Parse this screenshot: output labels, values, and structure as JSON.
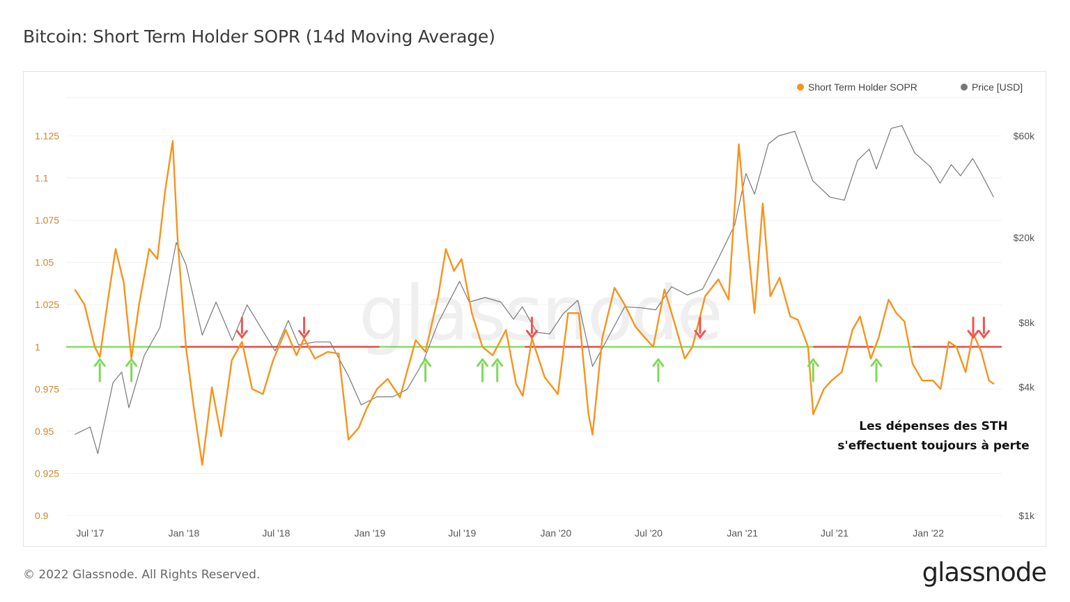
{
  "header": {
    "title": "Bitcoin: Short Term Holder SOPR (14d Moving Average)"
  },
  "legend": {
    "sopr": {
      "label": "Short Term Holder SOPR",
      "color": "#f7931a"
    },
    "price": {
      "label": "Price [USD]",
      "color": "#777777"
    }
  },
  "annotation": {
    "line1": "Les dépenses des STH",
    "line2": "s'effectuent toujours à perte"
  },
  "watermark": "glassnode",
  "footer": {
    "copyright": "© 2022 Glassnode. All Rights Reserved.",
    "brand": "glassnode"
  },
  "chart_data": {
    "type": "line",
    "x_axis": {
      "ticks": [
        "Jul '17",
        "Jan '18",
        "Jul '18",
        "Jan '19",
        "Jul '19",
        "Jan '20",
        "Jul '20",
        "Jan '21",
        "Jul '21",
        "Jan '22"
      ]
    },
    "y_left": {
      "ticks": [
        "0.9",
        "0.925",
        "0.95",
        "0.975",
        "1",
        "1.025",
        "1.05",
        "1.075",
        "1.1",
        "1.125"
      ],
      "range": [
        0.9,
        1.125
      ],
      "color": "#c98a2a"
    },
    "y_right": {
      "ticks": [
        "$1k",
        "$4k",
        "$8k",
        "$20k",
        "$60k"
      ],
      "scale": "log"
    },
    "reference_line": {
      "value": 1,
      "color_above_profit": "#7ed957",
      "color_loss": "#e53935"
    },
    "series": [
      {
        "name": "Short Term Holder SOPR",
        "color": "#f7931a",
        "x": [
          "2017-06-01",
          "2017-06-20",
          "2017-07-10",
          "2017-07-20",
          "2017-08-05",
          "2017-08-20",
          "2017-09-05",
          "2017-09-20",
          "2017-10-05",
          "2017-10-25",
          "2017-11-10",
          "2017-11-25",
          "2017-12-10",
          "2017-12-20",
          "2018-01-05",
          "2018-01-20",
          "2018-02-06",
          "2018-02-25",
          "2018-03-15",
          "2018-04-05",
          "2018-04-25",
          "2018-05-15",
          "2018-06-05",
          "2018-06-25",
          "2018-07-20",
          "2018-08-10",
          "2018-08-25",
          "2018-09-15",
          "2018-10-10",
          "2018-11-01",
          "2018-11-20",
          "2018-12-10",
          "2018-12-25",
          "2019-01-15",
          "2019-02-05",
          "2019-03-01",
          "2019-04-01",
          "2019-04-20",
          "2019-05-15",
          "2019-05-30",
          "2019-06-15",
          "2019-06-30",
          "2019-07-20",
          "2019-08-10",
          "2019-08-30",
          "2019-09-25",
          "2019-10-15",
          "2019-10-28",
          "2019-11-15",
          "2019-12-10",
          "2020-01-05",
          "2020-01-25",
          "2020-02-15",
          "2020-03-05",
          "2020-03-13",
          "2020-04-01",
          "2020-04-25",
          "2020-05-15",
          "2020-06-05",
          "2020-06-25",
          "2020-07-10",
          "2020-08-01",
          "2020-08-20",
          "2020-09-10",
          "2020-09-25",
          "2020-10-20",
          "2020-11-15",
          "2020-12-05",
          "2020-12-25",
          "2021-01-08",
          "2021-01-25",
          "2021-02-10",
          "2021-02-25",
          "2021-03-15",
          "2021-04-05",
          "2021-04-20",
          "2021-05-10",
          "2021-05-20",
          "2021-06-10",
          "2021-06-25",
          "2021-07-15",
          "2021-08-05",
          "2021-08-20",
          "2021-09-10",
          "2021-09-25",
          "2021-10-15",
          "2021-10-30",
          "2021-11-15",
          "2021-12-01",
          "2021-12-20",
          "2022-01-10",
          "2022-01-25",
          "2022-02-10",
          "2022-02-25",
          "2022-03-15",
          "2022-03-30",
          "2022-04-15",
          "2022-04-30",
          "2022-05-10"
        ],
        "values": [
          1.034,
          1.025,
          1.0,
          0.994,
          1.028,
          1.058,
          1.038,
          0.993,
          1.025,
          1.058,
          1.052,
          1.092,
          1.122,
          1.062,
          1.0,
          0.965,
          0.93,
          0.976,
          0.947,
          0.992,
          1.003,
          0.975,
          0.972,
          0.992,
          1.01,
          0.995,
          1.005,
          0.993,
          0.997,
          0.996,
          0.945,
          0.952,
          0.963,
          0.975,
          0.981,
          0.97,
          1.004,
          0.997,
          1.03,
          1.058,
          1.045,
          1.052,
          1.02,
          1.0,
          0.995,
          1.01,
          0.978,
          0.971,
          1.005,
          0.982,
          0.972,
          1.02,
          1.02,
          0.96,
          0.948,
          1.005,
          1.035,
          1.025,
          1.012,
          1.005,
          1.0,
          1.034,
          1.015,
          0.993,
          1.0,
          1.03,
          1.04,
          1.028,
          1.12,
          1.072,
          1.02,
          1.085,
          1.03,
          1.041,
          1.018,
          1.016,
          1.0,
          0.96,
          0.975,
          0.98,
          0.985,
          1.01,
          1.018,
          0.993,
          1.005,
          1.028,
          1.02,
          1.015,
          0.99,
          0.98,
          0.98,
          0.975,
          1.003,
          1.0,
          0.985,
          1.008,
          0.997,
          0.98,
          0.978
        ]
      },
      {
        "name": "Price [USD]",
        "color": "#777777",
        "x": [
          "2017-06-01",
          "2017-07-01",
          "2017-07-16",
          "2017-08-15",
          "2017-09-01",
          "2017-09-15",
          "2017-10-15",
          "2017-11-15",
          "2017-12-17",
          "2018-01-05",
          "2018-02-06",
          "2018-03-05",
          "2018-04-06",
          "2018-05-05",
          "2018-06-29",
          "2018-07-25",
          "2018-08-14",
          "2018-09-15",
          "2018-10-15",
          "2018-11-20",
          "2018-12-15",
          "2019-01-15",
          "2019-02-15",
          "2019-03-15",
          "2019-04-15",
          "2019-05-15",
          "2019-06-26",
          "2019-07-15",
          "2019-08-15",
          "2019-09-15",
          "2019-10-10",
          "2019-10-27",
          "2019-11-25",
          "2019-12-20",
          "2020-01-15",
          "2020-02-13",
          "2020-03-13",
          "2020-04-15",
          "2020-05-15",
          "2020-06-15",
          "2020-07-15",
          "2020-08-15",
          "2020-09-15",
          "2020-10-15",
          "2020-11-15",
          "2020-12-17",
          "2021-01-08",
          "2021-01-25",
          "2021-02-21",
          "2021-03-13",
          "2021-04-14",
          "2021-05-19",
          "2021-06-22",
          "2021-07-20",
          "2021-08-15",
          "2021-09-07",
          "2021-09-21",
          "2021-10-20",
          "2021-11-10",
          "2021-12-05",
          "2022-01-05",
          "2022-01-24",
          "2022-02-15",
          "2022-03-05",
          "2022-03-29",
          "2022-04-15",
          "2022-05-09"
        ],
        "values": [
          2400,
          2600,
          1950,
          4200,
          4700,
          3200,
          5600,
          7600,
          19000,
          15000,
          7000,
          10000,
          6600,
          9700,
          5900,
          8200,
          6300,
          6500,
          6500,
          4500,
          3300,
          3600,
          3600,
          3900,
          5200,
          8000,
          12500,
          10000,
          10500,
          10000,
          8300,
          9500,
          7200,
          7100,
          8800,
          10200,
          5000,
          7000,
          9500,
          9400,
          9200,
          11800,
          10800,
          11500,
          16000,
          23000,
          40000,
          32000,
          55000,
          60000,
          63000,
          37000,
          31000,
          30000,
          46000,
          52000,
          42000,
          65000,
          67000,
          50000,
          43000,
          36000,
          44000,
          39000,
          47000,
          40000,
          31000
        ]
      }
    ],
    "arrows": {
      "up_green": [
        "2017-07-20",
        "2017-09-20",
        "2019-04-20",
        "2019-08-10",
        "2019-09-08",
        "2020-07-20",
        "2021-05-20",
        "2021-09-21"
      ],
      "down_red": [
        "2018-04-25",
        "2018-08-25",
        "2019-11-15",
        "2020-10-10",
        "2022-03-30",
        "2022-04-20"
      ]
    }
  }
}
